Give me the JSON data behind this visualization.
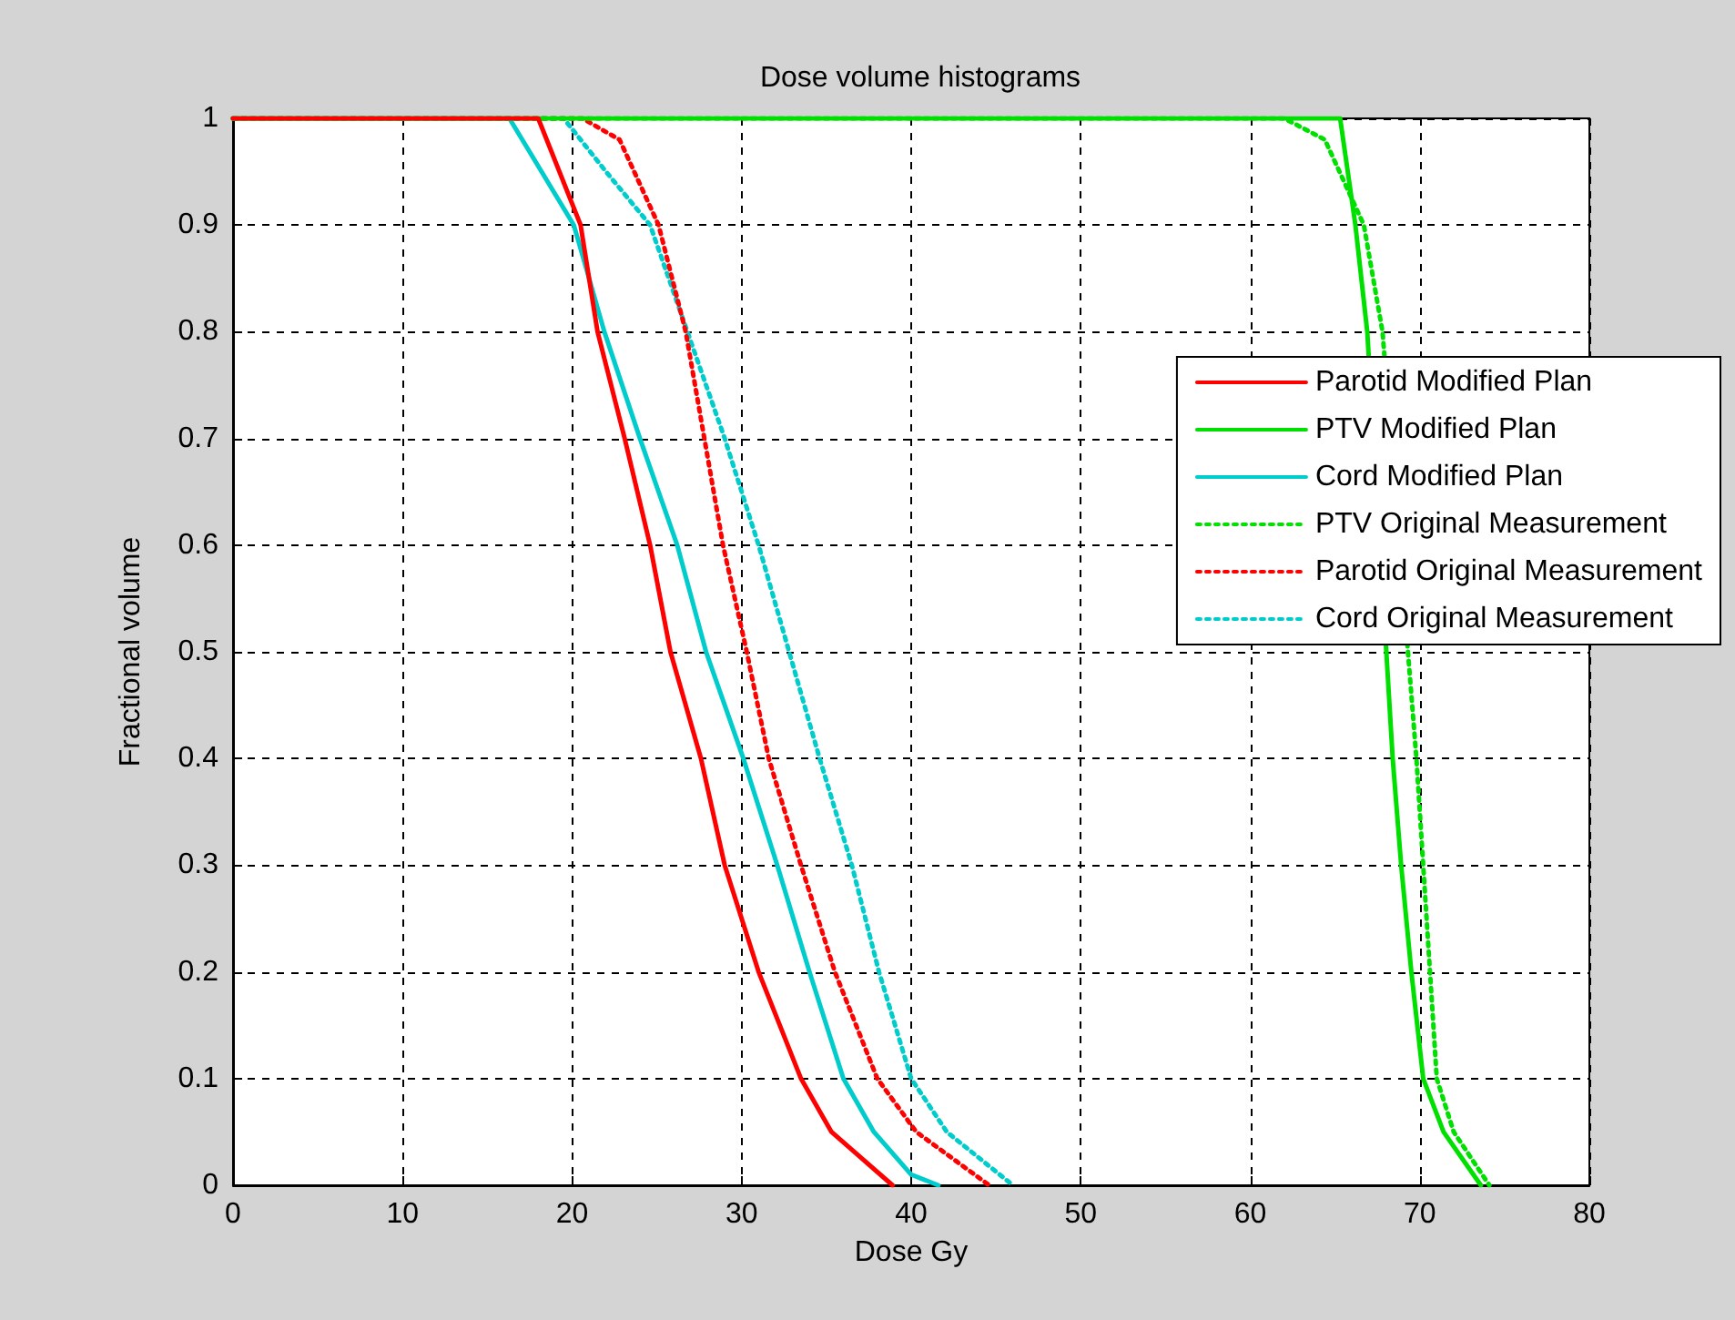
{
  "chart_data": {
    "type": "line",
    "title": "Dose volume histograms",
    "xlabel": "Dose Gy",
    "ylabel": "Fractional volume",
    "xlim": [
      0,
      80
    ],
    "xticks": [
      0,
      10,
      20,
      30,
      40,
      50,
      60,
      70,
      80
    ],
    "ylim": [
      0,
      1
    ],
    "yticks": [
      0,
      0.1,
      0.2,
      0.3,
      0.4,
      0.5,
      0.6,
      0.7,
      0.8,
      0.9,
      1
    ],
    "grid": true,
    "legend": "right",
    "marker": "none",
    "series": [
      {
        "name": "Parotid Modified Plan",
        "color": "#ff0000",
        "line_style": "solid",
        "x": [
          0,
          18,
          20.5,
          21.5,
          23.1,
          24.6,
          25.8,
          27.6,
          29.0,
          31.0,
          33.5,
          35.3,
          38.9
        ],
        "values": [
          1,
          1,
          0.9,
          0.8,
          0.7,
          0.6,
          0.5,
          0.4,
          0.3,
          0.2,
          0.1,
          0.05,
          0
        ]
      },
      {
        "name": "PTV Modified Plan",
        "color": "#00e000",
        "line_style": "solid",
        "x": [
          0,
          65.3,
          66.2,
          66.9,
          68.4,
          68.9,
          69.5,
          70.2,
          71.4,
          73.6
        ],
        "values": [
          1,
          1,
          0.9,
          0.8,
          0.4,
          0.3,
          0.2,
          0.1,
          0.05,
          0
        ]
      },
      {
        "name": "Cord Modified Plan",
        "color": "#00cccc",
        "line_style": "solid",
        "x": [
          0,
          16.3,
          20.1,
          21.9,
          24.0,
          26.2,
          27.9,
          30.1,
          32.1,
          34.0,
          36.0,
          37.8,
          40.0,
          41.6
        ],
        "values": [
          1,
          1,
          0.9,
          0.8,
          0.7,
          0.6,
          0.5,
          0.4,
          0.3,
          0.2,
          0.1,
          0.05,
          0.01,
          0
        ]
      },
      {
        "name": "PTV Original Measurement",
        "color": "#00e000",
        "line_style": "dotted",
        "x": [
          0,
          62,
          64.4,
          66.7,
          67.8,
          69.8,
          70.2,
          70.6,
          71.0,
          72.0,
          74.1
        ],
        "values": [
          1,
          1,
          0.98,
          0.9,
          0.8,
          0.4,
          0.3,
          0.2,
          0.1,
          0.05,
          0
        ]
      },
      {
        "name": "Parotid Original Measurement",
        "color": "#ff0000",
        "line_style": "dotted",
        "x": [
          0,
          20.6,
          22.8,
          25.1,
          26.7,
          27.8,
          28.9,
          30.3,
          31.6,
          33.5,
          35.5,
          38.0,
          40.3,
          44.6
        ],
        "values": [
          1,
          1,
          0.98,
          0.9,
          0.8,
          0.7,
          0.6,
          0.5,
          0.4,
          0.3,
          0.2,
          0.1,
          0.05,
          0
        ]
      },
      {
        "name": "Cord Original Measurement",
        "color": "#00cccc",
        "line_style": "dotted",
        "x": [
          0,
          19.5,
          22.0,
          24.6,
          26.8,
          29.0,
          31.0,
          32.8,
          34.6,
          36.5,
          38.1,
          40.0,
          42.1,
          46.0
        ],
        "values": [
          1,
          1,
          0.95,
          0.9,
          0.8,
          0.7,
          0.6,
          0.5,
          0.4,
          0.3,
          0.2,
          0.1,
          0.05,
          0
        ]
      }
    ]
  }
}
